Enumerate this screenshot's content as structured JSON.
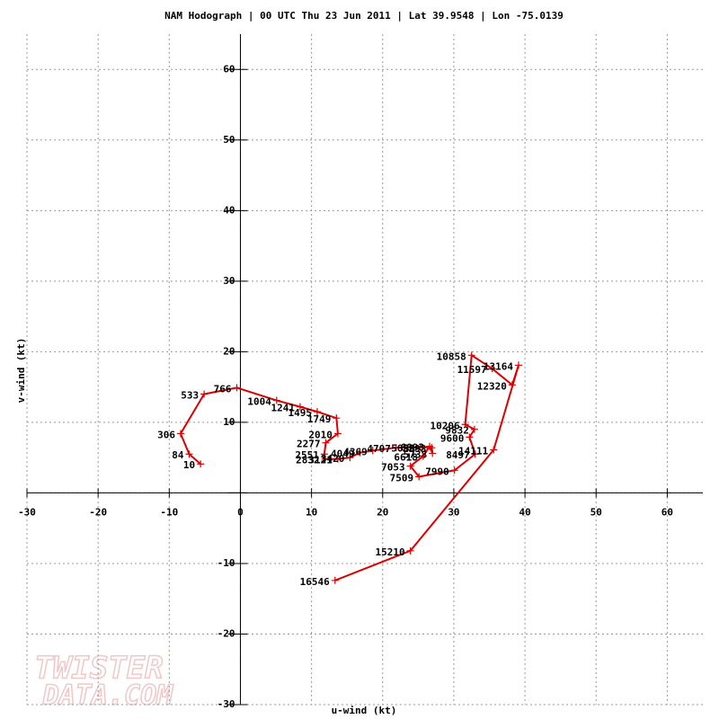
{
  "chart_data": {
    "type": "line",
    "title": "NAM Hodograph | 00 UTC Thu 23 Jun 2011 | Lat 39.9548 | Lon -75.0139",
    "x_label": "u-wind (kt)",
    "y_label": "v-wind (kt)",
    "x": [
      -5.6,
      -7.2,
      -8.4,
      -5.1,
      -0.5,
      5.1,
      8.4,
      10.8,
      13.5,
      13.7,
      12.0,
      11.8,
      11.9,
      13.7,
      15.4,
      16.8,
      18.6,
      21.9,
      25.3,
      26.9,
      27.0,
      26.6,
      25.7,
      23.9,
      25.1,
      30.1,
      33.0,
      32.2,
      32.9,
      31.6,
      32.5,
      35.4,
      38.2,
      39.1,
      35.6,
      23.9,
      13.3
    ],
    "values": [
      4.1,
      5.5,
      8.4,
      14.0,
      14.9,
      13.1,
      12.2,
      11.5,
      10.6,
      8.4,
      7.1,
      5.5,
      4.8,
      4.8,
      5.0,
      5.7,
      6.0,
      6.4,
      6.5,
      6.4,
      5.6,
      6.6,
      5.2,
      3.8,
      2.3,
      3.2,
      5.5,
      7.9,
      9.0,
      9.7,
      19.5,
      17.6,
      15.3,
      18.1,
      6.1,
      -8.2,
      -12.4
    ],
    "heights": [
      10,
      84,
      306,
      533,
      766,
      1004,
      1241,
      1495,
      1749,
      2010,
      2277,
      2551,
      2832,
      3121,
      3420,
      4049,
      4369,
      4707,
      5050,
      5393,
      5738,
      6093,
      6618,
      7053,
      7509,
      7990,
      8497,
      9600,
      9832,
      10206,
      10858,
      11597,
      12320,
      13164,
      14111,
      15210,
      16546
    ],
    "color": "#dd0000",
    "xlim": [
      -30,
      65
    ],
    "ylim": [
      -30,
      65
    ],
    "xticks": [
      -30,
      -20,
      -10,
      0,
      10,
      20,
      30,
      40,
      50,
      60
    ],
    "yticks": [
      -30,
      -20,
      -10,
      0,
      10,
      20,
      30,
      40,
      50,
      60
    ],
    "grid": true,
    "watermark": [
      "TWISTER",
      "DATA.COM"
    ]
  }
}
